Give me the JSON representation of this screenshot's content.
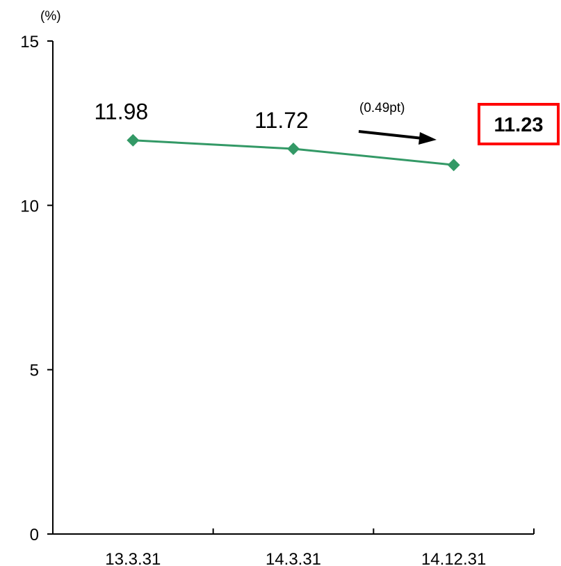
{
  "chart_data": {
    "type": "line",
    "title": "",
    "unit_label": "(%)",
    "categories": [
      "13.3.31",
      "14.3.31",
      "14.12.31"
    ],
    "series": [
      {
        "values": [
          11.98,
          11.72,
          11.23
        ],
        "color": "#339966"
      }
    ],
    "data_labels": [
      "11.98",
      "11.72"
    ],
    "ylim": [
      0,
      15
    ],
    "yticks": [
      0,
      5,
      10,
      15
    ],
    "grid": false,
    "annotation": {
      "change_text": "(0.49pt)",
      "highlight_value": "11.23",
      "highlight_border_color": "#ff0000"
    }
  }
}
